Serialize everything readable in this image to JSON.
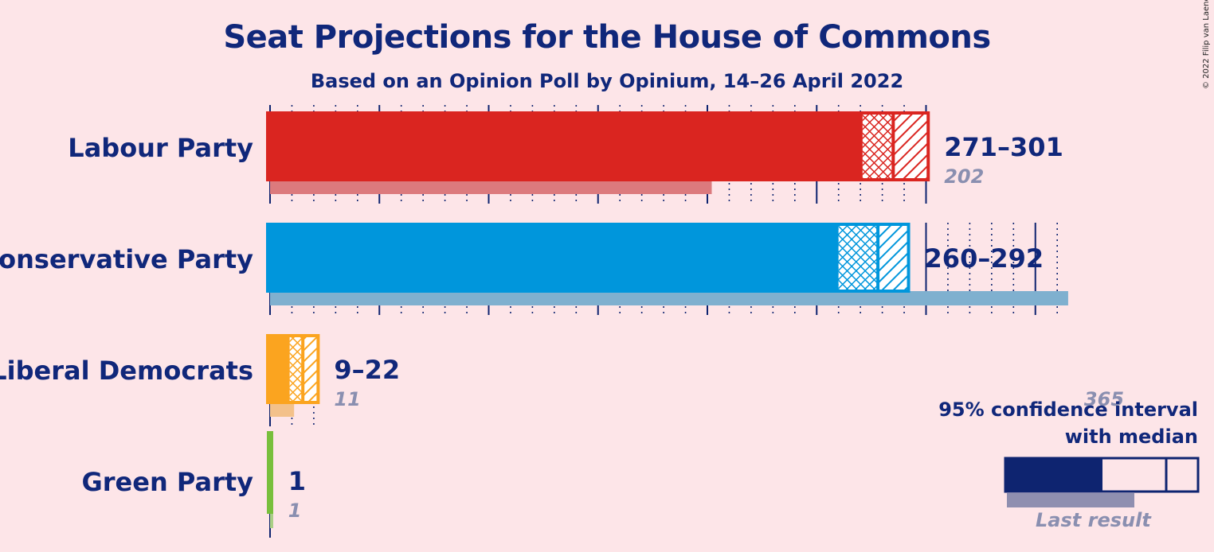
{
  "title": "Seat Projections for the House of Commons",
  "subtitle": "Based on an Opinion Poll by Opinium, 14–26 April 2022",
  "copyright": "© 2022 Filip van Laenen",
  "legend": {
    "title_line1": "95% confidence interval",
    "title_line2": "with median",
    "last_result": "Last result",
    "color": "#0e2470"
  },
  "chart_data": {
    "type": "bar",
    "title": "Seat Projections for the House of Commons",
    "subtitle": "Based on an Opinion Poll by Opinium, 14–26 April 2022",
    "xlim": [
      0,
      365
    ],
    "categories": [
      "Labour Party",
      "Conservative Party",
      "Liberal Democrats",
      "Green Party"
    ],
    "series": [
      {
        "party": "Labour Party",
        "low": 271,
        "median": 285,
        "high": 301,
        "range_label": "271–301",
        "last": 202,
        "last_label": "202",
        "color": "#da2520",
        "last_color": "#dc7a7d"
      },
      {
        "party": "Conservative Party",
        "low": 260,
        "median": 278,
        "high": 292,
        "range_label": "260–292",
        "last": 365,
        "last_label": "365",
        "color": "#0096dc",
        "last_color": "#7fb0cf"
      },
      {
        "party": "Liberal Democrats",
        "low": 9,
        "median": 15,
        "high": 22,
        "range_label": "9–22",
        "last": 11,
        "last_label": "11",
        "color": "#fba41f",
        "last_color": "#f3c18a"
      },
      {
        "party": "Green Party",
        "low": 1,
        "median": 1,
        "high": 1,
        "range_label": "1",
        "last": 1,
        "last_label": "1",
        "color": "#78bf3c",
        "last_color": "#a9cf85"
      }
    ]
  }
}
